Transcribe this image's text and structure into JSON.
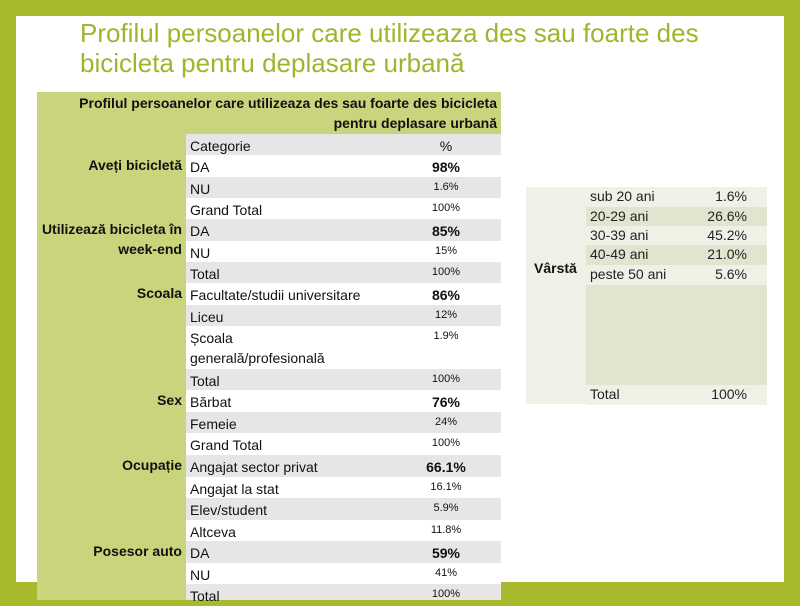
{
  "title": "Profilul persoanelor care utilizeaza des sau foarte des bicicleta pentru deplasare urbană",
  "table": {
    "header": "Profilul persoanelor care utilizeaza des sau foarte des bicicleta pentru deplasare urbană",
    "groups": [
      {
        "label": "Aveți bicicletă"
      },
      {
        "label": "Utilizează bicicleta în week-end"
      },
      {
        "label": "Scoala"
      },
      {
        "label": "Sex"
      },
      {
        "label": "Ocupație"
      },
      {
        "label": "Posesor auto"
      }
    ],
    "rows": [
      {
        "c1": "Categorie",
        "c2": "%"
      },
      {
        "c1": "DA",
        "c2": "98%"
      },
      {
        "c1": "NU",
        "c2": "1.6%"
      },
      {
        "c1": "Grand Total",
        "c2": "100%"
      },
      {
        "c1": "DA",
        "c2": "85%"
      },
      {
        "c1": "NU",
        "c2": "15%"
      },
      {
        "c1": "Total",
        "c2": "100%"
      },
      {
        "c1": "Facultate/studii universitare",
        "c2": "86%"
      },
      {
        "c1": "Liceu",
        "c2": "12%"
      },
      {
        "c1": "Școala generală/profesională",
        "c2": "1.9%"
      },
      {
        "c1": "Total",
        "c2": "100%"
      },
      {
        "c1": "Bărbat",
        "c2": "76%"
      },
      {
        "c1": "Femeie",
        "c2": "24%"
      },
      {
        "c1": "Grand Total",
        "c2": "100%"
      },
      {
        "c1": "Angajat sector privat",
        "c2": "66.1%"
      },
      {
        "c1": "Angajat la stat",
        "c2": "16.1%"
      },
      {
        "c1": "Elev/student",
        "c2": "5.9%"
      },
      {
        "c1": "Altceva",
        "c2": "11.8%"
      },
      {
        "c1": "DA",
        "c2": "59%"
      },
      {
        "c1": "NU",
        "c2": "41%"
      },
      {
        "c1": "Total",
        "c2": "100%"
      }
    ]
  },
  "age": {
    "label": "Vârstă",
    "rows": [
      {
        "c1": "sub 20 ani",
        "c2": "1.6%"
      },
      {
        "c1": "20-29 ani",
        "c2": "26.6%"
      },
      {
        "c1": "30-39 ani",
        "c2": "45.2%"
      },
      {
        "c1": "40-49 ani",
        "c2": "21.0%"
      },
      {
        "c1": "peste 50 ani",
        "c2": "5.6%"
      }
    ],
    "total": {
      "c1": "Total",
      "c2": "100%"
    }
  }
}
